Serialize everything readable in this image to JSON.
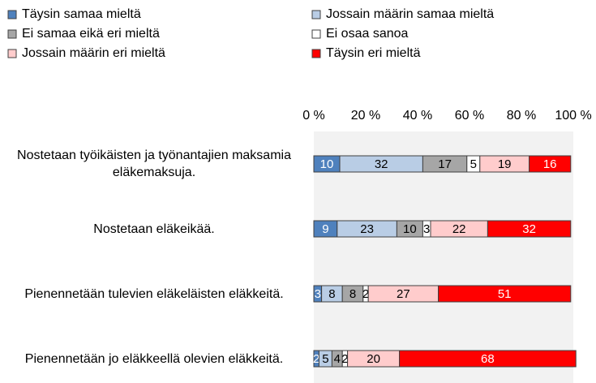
{
  "chart_data": {
    "type": "stacked_barh",
    "categories": [
      "Nostetaan työikäisten ja työnantajien maksamia eläkemaksuja.",
      "Nostetaan eläkeikää.",
      "Pienennetään tulevien eläkeläisten eläkkeitä.",
      "Pienennetään jo eläkkeellä olevien eläkkeitä."
    ],
    "series": [
      {
        "name": "Täysin samaa mieltä",
        "color": "#4f81bd",
        "values": [
          10,
          9,
          3,
          2
        ]
      },
      {
        "name": "Jossain määrin samaa mieltä",
        "color": "#b9cde5",
        "values": [
          32,
          23,
          8,
          5
        ]
      },
      {
        "name": "Ei samaa eikä eri mieltä",
        "color": "#a6a6a6",
        "values": [
          17,
          10,
          8,
          4
        ]
      },
      {
        "name": "Ei osaa sanoa",
        "color": "#ffffff",
        "values": [
          5,
          3,
          2,
          2
        ]
      },
      {
        "name": "Jossain määrin eri mieltä",
        "color": "#ffcccc",
        "values": [
          19,
          22,
          27,
          20
        ]
      },
      {
        "name": "Täysin eri mieltä",
        "color": "#ff0000",
        "values": [
          16,
          32,
          51,
          68
        ]
      }
    ],
    "xlim": [
      0,
      100
    ],
    "xticks": [
      {
        "value": 0,
        "label": "0 %"
      },
      {
        "value": 20,
        "label": "20 %"
      },
      {
        "value": 40,
        "label": "40 %"
      },
      {
        "value": 60,
        "label": "60 %"
      },
      {
        "value": 80,
        "label": "80 %"
      },
      {
        "value": 100,
        "label": "100 %"
      }
    ],
    "legend": "top"
  }
}
